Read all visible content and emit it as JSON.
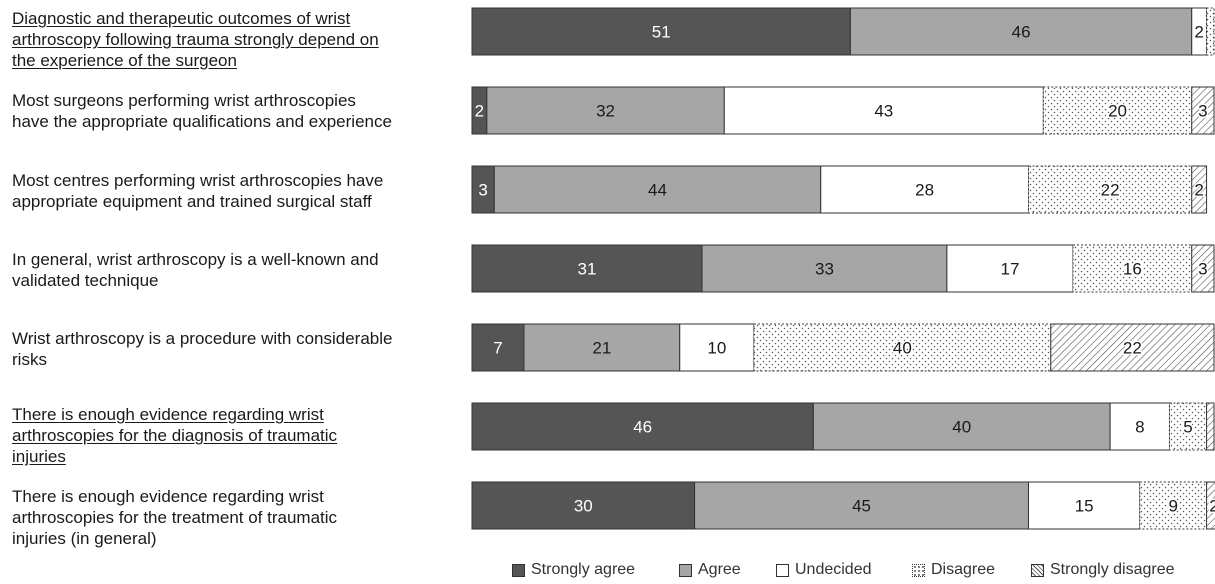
{
  "chart_data": {
    "type": "bar",
    "orientation": "horizontal",
    "stacked": true,
    "normalized": true,
    "categories": [
      "Diagnostic and therapeutic outcomes of wrist arthroscopy following trauma strongly depend on the experience of the surgeon",
      "Most surgeons performing wrist arthroscopies have the appropriate qualifications and experience",
      "Most centres performing wrist arthroscopies have appropriate equipment and trained surgical staff",
      "In general, wrist arthroscopy is a well-known and validated technique",
      "Wrist arthroscopy is a procedure with considerable risks",
      "There is enough evidence regarding wrist arthroscopies for the diagnosis of traumatic injuries",
      "There is enough evidence regarding wrist arthroscopies for the treatment of traumatic injuries (in general)"
    ],
    "category_lines": [
      [
        "Diagnostic and therapeutic outcomes of wrist",
        "arthroscopy following trauma strongly depend on",
        "the experience of the surgeon"
      ],
      [
        "Most surgeons performing wrist arthroscopies",
        "have the appropriate qualifications and experience"
      ],
      [
        "Most centres performing wrist arthroscopies have",
        "appropriate equipment and trained surgical staff"
      ],
      [
        "In general, wrist arthroscopy is a well-known and",
        "validated technique"
      ],
      [
        "Wrist arthroscopy is a procedure with considerable",
        "risks"
      ],
      [
        "There is enough evidence regarding wrist",
        "arthroscopies for the diagnosis of traumatic",
        "injuries"
      ],
      [
        "There is enough evidence regarding wrist",
        "arthroscopies for the treatment of traumatic",
        "injuries (in general)"
      ]
    ],
    "underlined": [
      true,
      false,
      false,
      false,
      false,
      true,
      false
    ],
    "series": [
      {
        "name": "Strongly agree",
        "color": "#555555",
        "pattern": "solid",
        "values": [
          51,
          2,
          3,
          31,
          7,
          46,
          30
        ],
        "labels": [
          "51",
          "2",
          "3",
          "31",
          "7",
          "46",
          "30"
        ]
      },
      {
        "name": "Agree",
        "color": "#a6a6a6",
        "pattern": "solid",
        "values": [
          46,
          32,
          44,
          33,
          21,
          40,
          45
        ],
        "labels": [
          "46",
          "32",
          "44",
          "33",
          "21",
          "40",
          "45"
        ]
      },
      {
        "name": "Undecided",
        "color": "#ffffff",
        "pattern": "solid",
        "values": [
          2,
          43,
          28,
          17,
          10,
          8,
          15
        ],
        "labels": [
          "2",
          "43",
          "28",
          "17",
          "10",
          "8",
          "15"
        ]
      },
      {
        "name": "Disagree",
        "color": "#ffffff",
        "pattern": "dots",
        "values": [
          1,
          20,
          22,
          16,
          40,
          5,
          9
        ],
        "labels": [
          "",
          "20",
          "22",
          "16",
          "40",
          "5",
          "9"
        ]
      },
      {
        "name": "Strongly disagree",
        "color": "#ffffff",
        "pattern": "hatch",
        "values": [
          0,
          3,
          2,
          3,
          22,
          1,
          2
        ],
        "labels": [
          "",
          "3",
          "2",
          "3",
          "22",
          "",
          "2"
        ]
      }
    ],
    "xlim": [
      0,
      100
    ],
    "grid": false,
    "legend_position": "bottom"
  }
}
